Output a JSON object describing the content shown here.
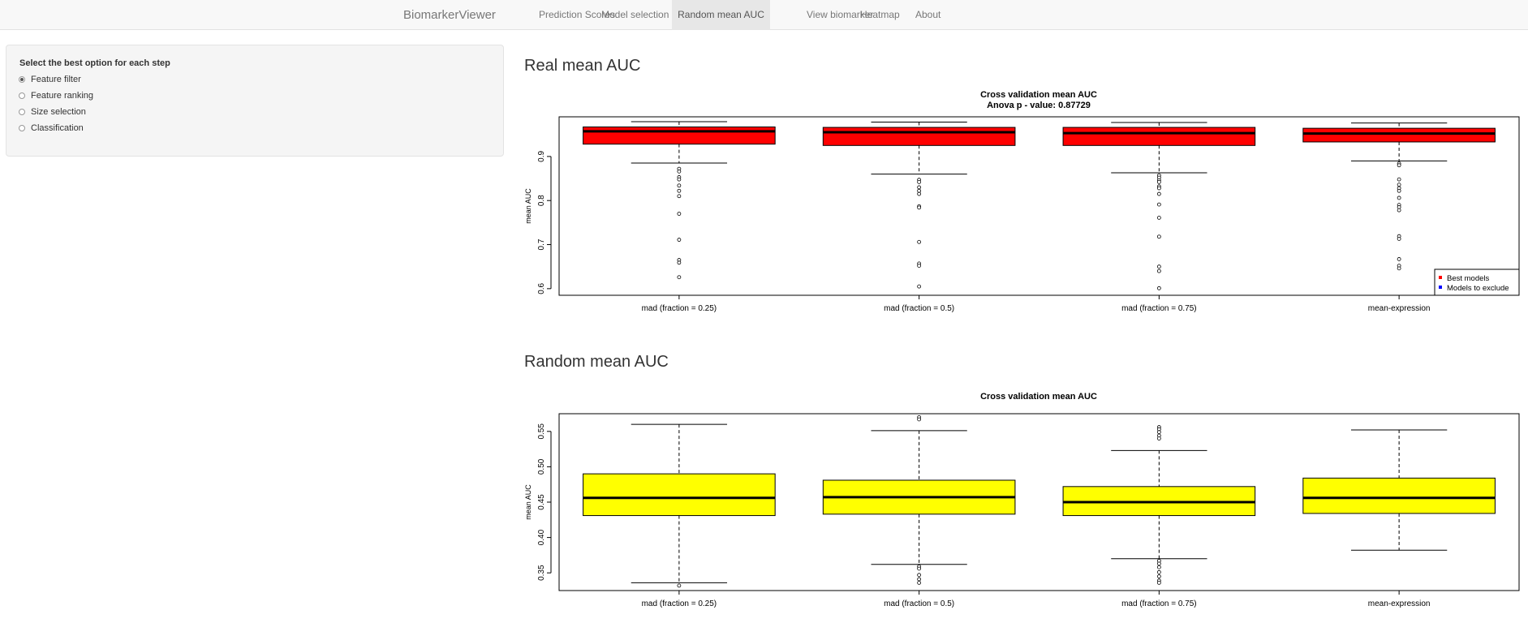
{
  "navbar": {
    "brand": "BiomarkerViewer",
    "tabs": [
      {
        "label": "Prediction Scores",
        "active": false
      },
      {
        "label": "Model selection",
        "active": false
      },
      {
        "label": "Random mean AUC",
        "active": true
      },
      {
        "label": "View biomarker",
        "active": false
      },
      {
        "label": "Heatmap",
        "active": false
      },
      {
        "label": "About",
        "active": false
      }
    ]
  },
  "sidebar": {
    "title": "Select the best option for each step",
    "options": [
      {
        "label": "Feature filter",
        "checked": true
      },
      {
        "label": "Feature ranking",
        "checked": false
      },
      {
        "label": "Size selection",
        "checked": false
      },
      {
        "label": "Classification",
        "checked": false
      }
    ]
  },
  "sections": {
    "real_title": "Real mean AUC",
    "random_title": "Random mean AUC"
  },
  "chart_data": [
    {
      "type": "box",
      "title": "Cross validation mean AUC",
      "subtitle": "Anova p - value: 0.87729",
      "ylabel": "mean AUC",
      "xlabel": "",
      "ylim": [
        0.585,
        0.99
      ],
      "yticks": [
        0.6,
        0.7,
        0.8,
        0.9
      ],
      "ytick_labels": [
        "0.6",
        "0.7",
        "0.8",
        "0.9"
      ],
      "fill": "#ff0000",
      "categories": [
        "mad (fraction = 0.25)",
        "mad (fraction = 0.5)",
        "mad (fraction = 0.75)",
        "mean-expression"
      ],
      "boxes": [
        {
          "whisker_low": 0.885,
          "q1": 0.928,
          "median": 0.957,
          "q3": 0.967,
          "whisker_high": 0.979,
          "outliers": [
            0.872,
            0.866,
            0.853,
            0.848,
            0.834,
            0.822,
            0.81,
            0.77,
            0.711,
            0.665,
            0.659,
            0.626
          ]
        },
        {
          "whisker_low": 0.86,
          "q1": 0.925,
          "median": 0.955,
          "q3": 0.966,
          "whisker_high": 0.978,
          "outliers": [
            0.847,
            0.842,
            0.83,
            0.822,
            0.815,
            0.787,
            0.784,
            0.706,
            0.657,
            0.652,
            0.605
          ]
        },
        {
          "whisker_low": 0.863,
          "q1": 0.925,
          "median": 0.953,
          "q3": 0.966,
          "whisker_high": 0.977,
          "outliers": [
            0.857,
            0.852,
            0.846,
            0.842,
            0.832,
            0.828,
            0.815,
            0.791,
            0.761,
            0.718,
            0.65,
            0.64,
            0.601
          ]
        },
        {
          "whisker_low": 0.89,
          "q1": 0.933,
          "median": 0.952,
          "q3": 0.964,
          "whisker_high": 0.976,
          "outliers": [
            0.884,
            0.88,
            0.848,
            0.836,
            0.828,
            0.822,
            0.806,
            0.79,
            0.785,
            0.778,
            0.719,
            0.713,
            0.667,
            0.652,
            0.646
          ]
        }
      ],
      "legend": {
        "position": "bottom-right",
        "items": [
          {
            "label": "Best models",
            "color": "#ff0000"
          },
          {
            "label": "Models to exclude",
            "color": "#0000ff"
          }
        ]
      }
    },
    {
      "type": "box",
      "title": "Cross validation mean AUC",
      "ylabel": "mean AUC",
      "xlabel": "",
      "ylim": [
        0.325,
        0.575
      ],
      "yticks": [
        0.35,
        0.4,
        0.45,
        0.5,
        0.55
      ],
      "ytick_labels": [
        "0.35",
        "0.40",
        "0.45",
        "0.50",
        "0.55"
      ],
      "fill": "#ffff00",
      "categories": [
        "mad (fraction = 0.25)",
        "mad (fraction = 0.5)",
        "mad (fraction = 0.75)",
        "mean-expression"
      ],
      "boxes": [
        {
          "whisker_low": 0.336,
          "q1": 0.431,
          "median": 0.456,
          "q3": 0.49,
          "whisker_high": 0.56,
          "outliers": [
            0.332
          ]
        },
        {
          "whisker_low": 0.362,
          "q1": 0.433,
          "median": 0.457,
          "q3": 0.481,
          "whisker_high": 0.551,
          "outliers": [
            0.57,
            0.567,
            0.359,
            0.356,
            0.347,
            0.341,
            0.336
          ]
        },
        {
          "whisker_low": 0.37,
          "q1": 0.431,
          "median": 0.45,
          "q3": 0.472,
          "whisker_high": 0.523,
          "outliers": [
            0.556,
            0.553,
            0.549,
            0.544,
            0.54,
            0.367,
            0.363,
            0.358,
            0.351,
            0.345,
            0.339,
            0.336
          ]
        },
        {
          "whisker_low": 0.382,
          "q1": 0.434,
          "median": 0.456,
          "q3": 0.484,
          "whisker_high": 0.552,
          "outliers": []
        }
      ]
    }
  ]
}
